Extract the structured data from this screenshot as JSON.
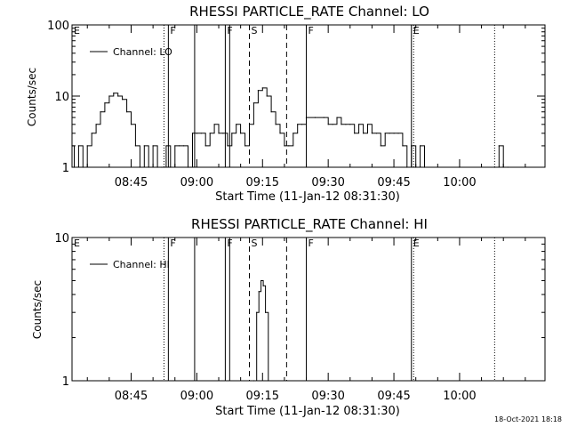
{
  "footer_timestamp": "18-Oct-2021 18:18",
  "chart_data": [
    {
      "type": "line",
      "title": "RHESSI PARTICLE_RATE Channel: LO",
      "xlabel": "Start Time (11-Jan-12 08:31:30)",
      "ylabel": "Counts/sec",
      "yscale": "log",
      "xlim": [
        "08:31:30",
        "10:19:30"
      ],
      "ylim": [
        1,
        100
      ],
      "x_ticks": [
        "08:45",
        "09:00",
        "09:15",
        "09:30",
        "09:45",
        "10:00"
      ],
      "y_ticks": [
        "1",
        "10",
        "100"
      ],
      "grid": false,
      "legend": "top-left",
      "series": [
        {
          "name": "Channel: LO",
          "points": [
            [
              "08:31:30",
              2
            ],
            [
              "08:32:00",
              1
            ],
            [
              "08:33:00",
              2
            ],
            [
              "08:34:00",
              1
            ],
            [
              "08:35:00",
              2
            ],
            [
              "08:36:00",
              3
            ],
            [
              "08:37:00",
              4
            ],
            [
              "08:38:00",
              6
            ],
            [
              "08:39:00",
              8
            ],
            [
              "08:40:00",
              10
            ],
            [
              "08:41:00",
              11
            ],
            [
              "08:42:00",
              10
            ],
            [
              "08:43:00",
              9
            ],
            [
              "08:44:00",
              6
            ],
            [
              "08:45:00",
              4
            ],
            [
              "08:46:00",
              2
            ],
            [
              "08:47:00",
              1
            ],
            [
              "08:48:00",
              2
            ],
            [
              "08:49:00",
              1
            ],
            [
              "08:50:00",
              2
            ],
            [
              "08:51:00",
              1
            ],
            [
              "08:52:00",
              1
            ],
            [
              "08:53:00",
              2
            ],
            [
              "08:54:00",
              1
            ],
            [
              "08:55:00",
              2
            ],
            [
              "08:56:00",
              2
            ],
            [
              "08:57:00",
              2
            ],
            [
              "08:58:00",
              1
            ],
            [
              "08:59:00",
              3
            ],
            [
              "09:00:00",
              3
            ],
            [
              "09:01:00",
              3
            ],
            [
              "09:02:00",
              2
            ],
            [
              "09:03:00",
              3
            ],
            [
              "09:04:00",
              4
            ],
            [
              "09:05:00",
              3
            ],
            [
              "09:06:00",
              3
            ],
            [
              "09:07:00",
              2
            ],
            [
              "09:08:00",
              3
            ],
            [
              "09:09:00",
              4
            ],
            [
              "09:10:00",
              3
            ],
            [
              "09:11:00",
              2
            ],
            [
              "09:12:00",
              4
            ],
            [
              "09:13:00",
              8
            ],
            [
              "09:14:00",
              12
            ],
            [
              "09:15:00",
              13
            ],
            [
              "09:16:00",
              10
            ],
            [
              "09:17:00",
              6
            ],
            [
              "09:18:00",
              4
            ],
            [
              "09:19:00",
              3
            ],
            [
              "09:20:00",
              2
            ],
            [
              "09:21:00",
              2
            ],
            [
              "09:22:00",
              3
            ],
            [
              "09:23:00",
              4
            ],
            [
              "09:24:00",
              4
            ],
            [
              "09:25:00",
              5
            ],
            [
              "09:27:00",
              5
            ],
            [
              "09:29:00",
              5
            ],
            [
              "09:30:00",
              4
            ],
            [
              "09:31:00",
              4
            ],
            [
              "09:32:00",
              5
            ],
            [
              "09:33:00",
              4
            ],
            [
              "09:34:00",
              4
            ],
            [
              "09:35:00",
              4
            ],
            [
              "09:36:00",
              3
            ],
            [
              "09:37:00",
              4
            ],
            [
              "09:38:00",
              3
            ],
            [
              "09:39:00",
              4
            ],
            [
              "09:40:00",
              3
            ],
            [
              "09:41:00",
              3
            ],
            [
              "09:42:00",
              2
            ],
            [
              "09:43:00",
              3
            ],
            [
              "09:44:00",
              3
            ],
            [
              "09:45:00",
              3
            ],
            [
              "09:46:00",
              3
            ],
            [
              "09:47:00",
              2
            ],
            [
              "09:48:00",
              1
            ],
            [
              "09:49:00",
              2
            ],
            [
              "09:50:00",
              1
            ],
            [
              "09:51:00",
              2
            ],
            [
              "09:52:00",
              1
            ],
            [
              "10:00:00",
              1
            ],
            [
              "10:08:00",
              1
            ],
            [
              "10:09:00",
              2
            ],
            [
              "10:10:00",
              1
            ],
            [
              "10:11:00",
              1
            ]
          ]
        }
      ],
      "markers": [
        {
          "label": "E",
          "time": "08:31:30",
          "style": "none"
        },
        {
          "label": "",
          "time": "08:52:30",
          "style": "dotted"
        },
        {
          "label": "F",
          "time": "08:53:30",
          "style": "solid"
        },
        {
          "label": "",
          "time": "08:59:30",
          "style": "solid"
        },
        {
          "label": "F",
          "time": "09:06:30",
          "style": "solid"
        },
        {
          "label": "",
          "time": "09:07:30",
          "style": "solid"
        },
        {
          "label": "S",
          "time": "09:12:00",
          "style": "dashed"
        },
        {
          "label": "",
          "time": "09:20:30",
          "style": "dashed"
        },
        {
          "label": "F",
          "time": "09:25:00",
          "style": "solid"
        },
        {
          "label": "E",
          "time": "09:49:00",
          "style": "solid"
        },
        {
          "label": "",
          "time": "09:49:30",
          "style": "dotted"
        },
        {
          "label": "",
          "time": "10:08:00",
          "style": "dotted"
        }
      ]
    },
    {
      "type": "line",
      "title": "RHESSI PARTICLE_RATE Channel: HI",
      "xlabel": "Start Time (11-Jan-12 08:31:30)",
      "ylabel": "Counts/sec",
      "yscale": "log",
      "xlim": [
        "08:31:30",
        "10:19:30"
      ],
      "ylim": [
        1,
        10
      ],
      "x_ticks": [
        "08:45",
        "09:00",
        "09:15",
        "09:30",
        "09:45",
        "10:00"
      ],
      "y_ticks": [
        "1",
        "10"
      ],
      "grid": false,
      "legend": "top-left",
      "series": [
        {
          "name": "Channel: HI",
          "points": [
            [
              "09:13:00",
              1
            ],
            [
              "09:13:40",
              3
            ],
            [
              "09:14:10",
              4.2
            ],
            [
              "09:14:40",
              5
            ],
            [
              "09:15:10",
              4.6
            ],
            [
              "09:15:40",
              3
            ],
            [
              "09:16:20",
              1
            ]
          ]
        }
      ],
      "markers": [
        {
          "label": "E",
          "time": "08:31:30",
          "style": "none"
        },
        {
          "label": "",
          "time": "08:52:30",
          "style": "dotted"
        },
        {
          "label": "F",
          "time": "08:53:30",
          "style": "solid"
        },
        {
          "label": "",
          "time": "08:59:30",
          "style": "solid"
        },
        {
          "label": "F",
          "time": "09:06:30",
          "style": "solid"
        },
        {
          "label": "",
          "time": "09:07:30",
          "style": "solid"
        },
        {
          "label": "S",
          "time": "09:12:00",
          "style": "dashed"
        },
        {
          "label": "",
          "time": "09:20:30",
          "style": "dashed"
        },
        {
          "label": "F",
          "time": "09:25:00",
          "style": "solid"
        },
        {
          "label": "E",
          "time": "09:49:00",
          "style": "solid"
        },
        {
          "label": "",
          "time": "09:49:30",
          "style": "dotted"
        },
        {
          "label": "",
          "time": "10:08:00",
          "style": "dotted"
        }
      ]
    }
  ]
}
